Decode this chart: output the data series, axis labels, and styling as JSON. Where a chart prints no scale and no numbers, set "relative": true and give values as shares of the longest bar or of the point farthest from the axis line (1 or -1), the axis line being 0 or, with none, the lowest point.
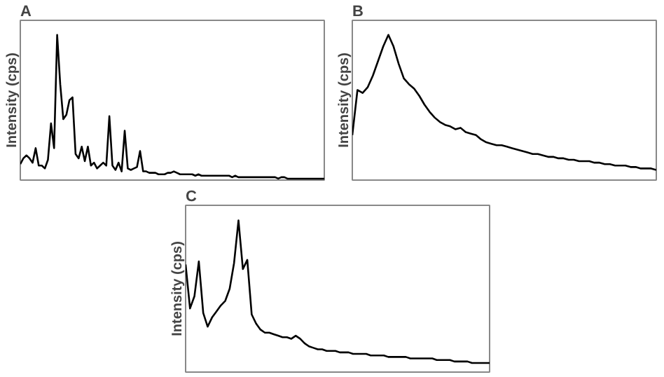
{
  "chart_data": [
    {
      "type": "line",
      "title": "A",
      "ylabel": "Intensity (cps)",
      "relative": true,
      "categories": [
        null,
        null,
        null,
        null,
        null,
        null,
        null,
        null,
        null,
        null,
        null,
        null,
        null,
        null,
        null,
        null,
        null,
        null,
        null,
        null,
        null,
        null,
        null,
        null,
        null,
        null,
        null,
        null,
        null,
        null,
        null,
        null,
        null,
        null,
        null,
        null,
        null,
        null,
        null,
        null,
        null,
        null,
        null,
        null,
        null,
        null,
        null,
        null,
        null,
        null,
        null,
        null,
        null,
        null,
        null,
        null,
        null,
        null,
        null,
        null,
        null,
        null,
        null,
        null,
        null,
        null,
        null,
        null,
        null,
        null,
        null,
        null,
        null,
        null,
        null,
        null,
        null,
        null,
        null,
        null,
        null,
        null,
        null,
        null,
        null,
        null,
        null,
        null,
        null,
        null,
        null,
        null,
        null,
        null,
        null,
        null,
        null,
        null,
        null,
        null
      ],
      "series": [
        {
          "color": "#000000",
          "values": [
            0.11,
            0.15,
            0.17,
            0.15,
            0.12,
            0.22,
            0.1,
            0.1,
            0.08,
            0.14,
            0.39,
            0.22,
            1.0,
            0.66,
            0.42,
            0.45,
            0.55,
            0.57,
            0.18,
            0.15,
            0.23,
            0.13,
            0.23,
            0.1,
            0.12,
            0.08,
            0.1,
            0.12,
            0.1,
            0.44,
            0.1,
            0.07,
            0.12,
            0.06,
            0.34,
            0.08,
            0.07,
            0.08,
            0.09,
            0.2,
            0.06,
            0.06,
            0.05,
            0.05,
            0.05,
            0.04,
            0.04,
            0.04,
            0.05,
            0.05,
            0.06,
            0.05,
            0.04,
            0.04,
            0.04,
            0.04,
            0.04,
            0.03,
            0.04,
            0.03,
            0.03,
            0.03,
            0.03,
            0.03,
            0.03,
            0.03,
            0.03,
            0.03,
            0.03,
            0.02,
            0.03,
            0.02,
            0.02,
            0.02,
            0.02,
            0.02,
            0.02,
            0.02,
            0.02,
            0.02,
            0.02,
            0.02,
            0.02,
            0.02,
            0.01,
            0.02,
            0.02,
            0.01,
            0.01,
            0.01,
            0.01,
            0.01,
            0.01,
            0.01,
            0.01,
            0.01,
            0.01,
            0.01,
            0.01,
            0.01
          ]
        }
      ]
    },
    {
      "type": "line",
      "title": "B",
      "ylabel": "Intensity (cps)",
      "relative": true,
      "categories": [
        null,
        null,
        null,
        null,
        null,
        null,
        null,
        null,
        null,
        null,
        null,
        null,
        null,
        null,
        null,
        null,
        null,
        null,
        null,
        null,
        null,
        null,
        null,
        null,
        null,
        null,
        null,
        null,
        null,
        null,
        null,
        null,
        null,
        null,
        null,
        null,
        null,
        null,
        null,
        null,
        null,
        null,
        null,
        null,
        null,
        null,
        null,
        null,
        null,
        null,
        null,
        null,
        null,
        null,
        null,
        null,
        null,
        null,
        null,
        null
      ],
      "series": [
        {
          "color": "#000000",
          "values": [
            0.31,
            0.62,
            0.6,
            0.64,
            0.72,
            0.82,
            0.92,
            1.0,
            0.92,
            0.8,
            0.7,
            0.66,
            0.63,
            0.58,
            0.52,
            0.47,
            0.43,
            0.4,
            0.38,
            0.37,
            0.35,
            0.36,
            0.33,
            0.32,
            0.31,
            0.28,
            0.26,
            0.25,
            0.24,
            0.24,
            0.23,
            0.22,
            0.21,
            0.2,
            0.19,
            0.18,
            0.18,
            0.17,
            0.16,
            0.16,
            0.15,
            0.15,
            0.14,
            0.14,
            0.13,
            0.13,
            0.13,
            0.12,
            0.12,
            0.11,
            0.11,
            0.1,
            0.1,
            0.1,
            0.09,
            0.09,
            0.08,
            0.08,
            0.08,
            0.07
          ]
        }
      ]
    },
    {
      "type": "line",
      "title": "C",
      "ylabel": "Intensity (cps)",
      "relative": true,
      "categories": [
        null,
        null,
        null,
        null,
        null,
        null,
        null,
        null,
        null,
        null,
        null,
        null,
        null,
        null,
        null,
        null,
        null,
        null,
        null,
        null,
        null,
        null,
        null,
        null,
        null,
        null,
        null,
        null,
        null,
        null,
        null,
        null,
        null,
        null,
        null,
        null,
        null,
        null,
        null,
        null,
        null,
        null,
        null,
        null,
        null,
        null,
        null,
        null,
        null,
        null,
        null,
        null,
        null,
        null,
        null,
        null,
        null,
        null,
        null,
        null,
        null,
        null,
        null,
        null,
        null,
        null,
        null,
        null,
        null,
        null
      ],
      "series": [
        {
          "color": "#000000",
          "values": [
            0.71,
            0.42,
            0.5,
            0.73,
            0.39,
            0.3,
            0.36,
            0.4,
            0.44,
            0.47,
            0.55,
            0.72,
            1.0,
            0.68,
            0.74,
            0.38,
            0.32,
            0.28,
            0.26,
            0.26,
            0.25,
            0.24,
            0.23,
            0.23,
            0.22,
            0.24,
            0.22,
            0.19,
            0.17,
            0.16,
            0.15,
            0.15,
            0.14,
            0.14,
            0.14,
            0.13,
            0.13,
            0.13,
            0.12,
            0.12,
            0.12,
            0.12,
            0.11,
            0.11,
            0.11,
            0.11,
            0.1,
            0.1,
            0.1,
            0.1,
            0.1,
            0.09,
            0.09,
            0.09,
            0.09,
            0.09,
            0.09,
            0.08,
            0.08,
            0.08,
            0.08,
            0.07,
            0.07,
            0.07,
            0.07,
            0.06,
            0.06,
            0.06,
            0.06,
            0.06
          ]
        }
      ]
    }
  ]
}
